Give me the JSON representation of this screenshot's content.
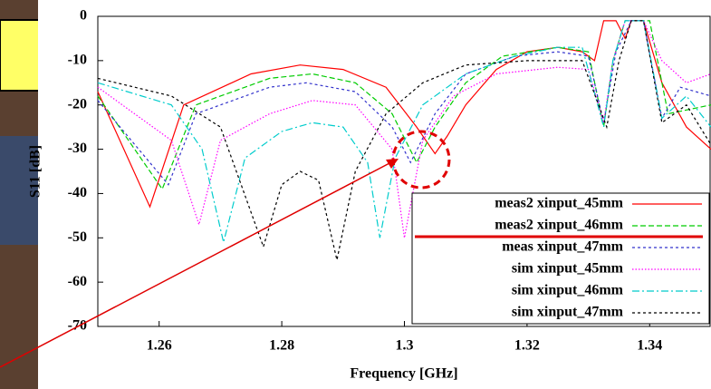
{
  "chart_data": {
    "type": "line",
    "x_label": "Frequency [GHz]",
    "y_label": "S11 [dB]",
    "xlim": [
      1.25,
      1.35
    ],
    "xticks": [
      1.26,
      1.28,
      1.3,
      1.32,
      1.34
    ],
    "ylim": [
      -70,
      0
    ],
    "yticks": [
      0,
      -10,
      -20,
      -30,
      -40,
      -50,
      -60,
      -70
    ],
    "legend": "lower right",
    "series": [
      {
        "name": "meas2 xinput_45mm",
        "color": "#ff0000",
        "x": [
          1.25,
          1.2585,
          1.264,
          1.275,
          1.283,
          1.29,
          1.297,
          1.302,
          1.305,
          1.307,
          1.31,
          1.315,
          1.32,
          1.325,
          1.329,
          1.331,
          1.3325,
          1.3345,
          1.336,
          1.337,
          1.339,
          1.342,
          1.346,
          1.35
        ],
        "values": [
          -17,
          -43,
          -20,
          -13,
          -11,
          -12,
          -16,
          -25,
          -31,
          -27,
          -20,
          -12,
          -8,
          -7,
          -8,
          -10,
          -1,
          -1,
          -5,
          -1,
          -1,
          -15,
          -25,
          -30
        ]
      },
      {
        "name": "meas2 xinput_46mm",
        "color": "#00cc00",
        "x": [
          1.25,
          1.2605,
          1.266,
          1.278,
          1.285,
          1.292,
          1.298,
          1.302,
          1.305,
          1.31,
          1.316,
          1.325,
          1.33,
          1.3325,
          1.334,
          1.336,
          1.34,
          1.343,
          1.35
        ],
        "values": [
          -18,
          -39,
          -20,
          -14,
          -13,
          -15,
          -22,
          -33,
          -25,
          -15,
          -9,
          -7,
          -8,
          -25,
          -10,
          -1,
          -1,
          -22,
          -20
        ]
      },
      {
        "name": "meas xinput_47mm",
        "color": "#3333cc",
        "x": [
          1.25,
          1.2615,
          1.266,
          1.278,
          1.284,
          1.292,
          1.298,
          1.301,
          1.305,
          1.31,
          1.318,
          1.325,
          1.33,
          1.3325,
          1.3345,
          1.337,
          1.339,
          1.342,
          1.345,
          1.35
        ],
        "values": [
          -19,
          -38,
          -22,
          -16,
          -15,
          -17,
          -25,
          -33,
          -22,
          -13,
          -9,
          -8,
          -9,
          -24,
          -8,
          -1,
          -1,
          -23,
          -16,
          -18
        ]
      },
      {
        "name": "sim xinput_45mm",
        "color": "#ff00ff",
        "x": [
          1.25,
          1.262,
          1.2665,
          1.27,
          1.278,
          1.285,
          1.292,
          1.298,
          1.3,
          1.303,
          1.308,
          1.315,
          1.325,
          1.33,
          1.3325,
          1.334,
          1.336,
          1.339,
          1.342,
          1.346,
          1.35
        ],
        "values": [
          -16,
          -28,
          -47,
          -28,
          -22,
          -19,
          -20,
          -30,
          -50,
          -28,
          -18,
          -13,
          -11.5,
          -12,
          -24,
          -10,
          -1,
          -1,
          -10,
          -15,
          -13
        ]
      },
      {
        "name": "sim xinput_46mm",
        "color": "#00cccc",
        "x": [
          1.25,
          1.262,
          1.267,
          1.2705,
          1.274,
          1.28,
          1.285,
          1.29,
          1.294,
          1.296,
          1.2985,
          1.303,
          1.31,
          1.318,
          1.325,
          1.329,
          1.3325,
          1.334,
          1.336,
          1.339,
          1.342,
          1.346,
          1.35
        ],
        "values": [
          -15,
          -20,
          -30,
          -51,
          -32,
          -26,
          -24,
          -25,
          -33,
          -50,
          -32,
          -20,
          -13,
          -9,
          -7,
          -7,
          -25,
          -10,
          -1,
          -1,
          -23,
          -18,
          -25
        ]
      },
      {
        "name": "sim xinput_47mm",
        "color": "#000000",
        "x": [
          1.25,
          1.262,
          1.27,
          1.277,
          1.28,
          1.283,
          1.286,
          1.289,
          1.292,
          1.297,
          1.303,
          1.31,
          1.32,
          1.329,
          1.333,
          1.335,
          1.337,
          1.339,
          1.342,
          1.346,
          1.35
        ],
        "values": [
          -14,
          -18,
          -25,
          -52,
          -38,
          -35,
          -37,
          -55,
          -35,
          -22,
          -15,
          -11,
          -10,
          -10,
          -25,
          -10,
          -1,
          -1,
          -24,
          -20,
          -29
        ]
      }
    ]
  }
}
